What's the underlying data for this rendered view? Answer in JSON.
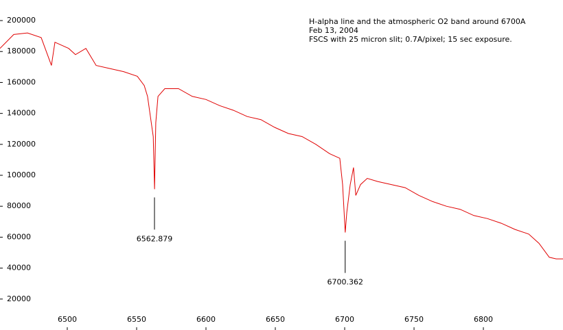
{
  "chart_data": {
    "type": "line",
    "title": "H-alpha line and the atmospheric O2 band around 6700A",
    "subtitles": [
      "Feb 13, 2004",
      "FSCS with 25 micron slit; 0.7A/pixel; 15 sec exposure."
    ],
    "x": [
      6451.5,
      6461.4,
      6471.3,
      6481.2,
      6488.6,
      6491.1,
      6501.0,
      6505.9,
      6513.4,
      6520.8,
      6530.7,
      6540.6,
      6550.5,
      6555.5,
      6557.9,
      6562.0,
      6562.9,
      6563.8,
      6565.4,
      6570.3,
      6580.2,
      6590.1,
      6600.0,
      6609.9,
      6619.8,
      6629.7,
      6639.6,
      6649.5,
      6659.4,
      6669.3,
      6679.2,
      6689.1,
      6696.5,
      6698.5,
      6700.4,
      6701.5,
      6704.0,
      6706.4,
      6708.0,
      6711.4,
      6716.3,
      6723.8,
      6733.7,
      6743.6,
      6753.5,
      6763.4,
      6773.3,
      6783.2,
      6793.1,
      6803.0,
      6812.9,
      6822.8,
      6832.7,
      6840.1,
      6847.5,
      6852.5,
      6857.4
    ],
    "series": [
      {
        "color": "#e00000",
        "values": [
          182000,
          191000,
          192000,
          189000,
          171000,
          186000,
          182000,
          178000,
          182000,
          171000,
          169000,
          167000,
          164000,
          158000,
          151000,
          125000,
          91000,
          134000,
          151000,
          156000,
          156000,
          151000,
          149000,
          145000,
          142000,
          138000,
          136000,
          131000,
          127000,
          125000,
          120000,
          114000,
          111000,
          94000,
          63000,
          76000,
          94000,
          105000,
          87000,
          94000,
          98000,
          96000,
          94000,
          92000,
          87000,
          83000,
          80000,
          78000,
          74000,
          72000,
          69000,
          65000,
          62000,
          56000,
          47000,
          46000,
          46000
        ]
      }
    ],
    "annotations": [
      6562.879,
      6700.362
    ],
    "xlim": [
      6451.5,
      6857.4
    ],
    "xticks": [
      6500,
      6550,
      6600,
      6650,
      6700,
      6750,
      6800
    ],
    "ylim": [
      0,
      213300
    ],
    "yticks": [
      20000,
      40000,
      60000,
      80000,
      100000,
      120000,
      140000,
      160000,
      180000,
      200000
    ]
  }
}
